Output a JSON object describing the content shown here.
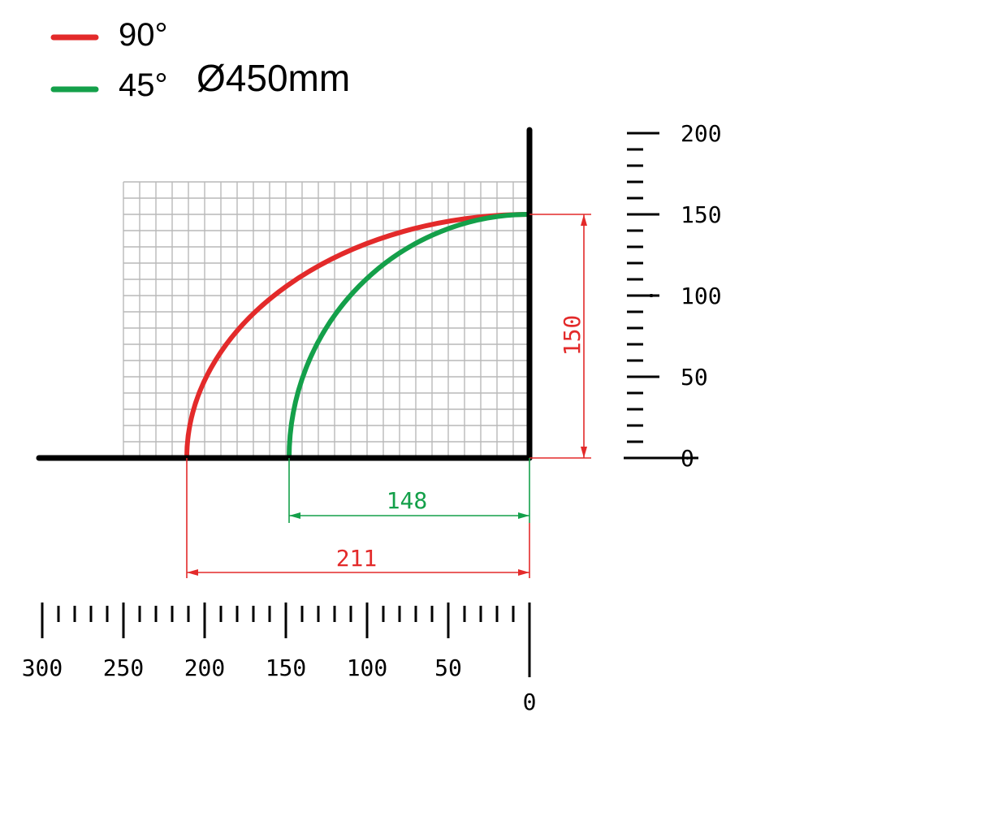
{
  "legend": {
    "items": [
      {
        "label": "90°",
        "color": "#e32a2a"
      },
      {
        "label": "45°",
        "color": "#14a04a"
      }
    ],
    "diameter_label": "Ø450mm"
  },
  "chart_data": {
    "type": "line",
    "x_axis": {
      "ticks": [
        "300",
        "250",
        "200",
        "150",
        "100",
        "50",
        "0"
      ],
      "range": [
        300,
        0
      ],
      "minor_step": 10
    },
    "y_axis": {
      "ticks": [
        "0",
        "50",
        "100",
        "150",
        "200"
      ],
      "range": [
        0,
        200
      ],
      "minor_step": 10
    },
    "grid": {
      "on": true,
      "x_range": [
        0,
        250
      ],
      "y_range": [
        0,
        170
      ],
      "step": 10
    },
    "series": [
      {
        "name": "90°",
        "color": "#e32a2a",
        "x_reach": 211,
        "height": 150
      },
      {
        "name": "45°",
        "color": "#14a04a",
        "x_reach": 148,
        "height": 150
      }
    ],
    "dimensions": {
      "height_label": "150",
      "reach_90_label": "211",
      "reach_45_label": "148"
    }
  }
}
